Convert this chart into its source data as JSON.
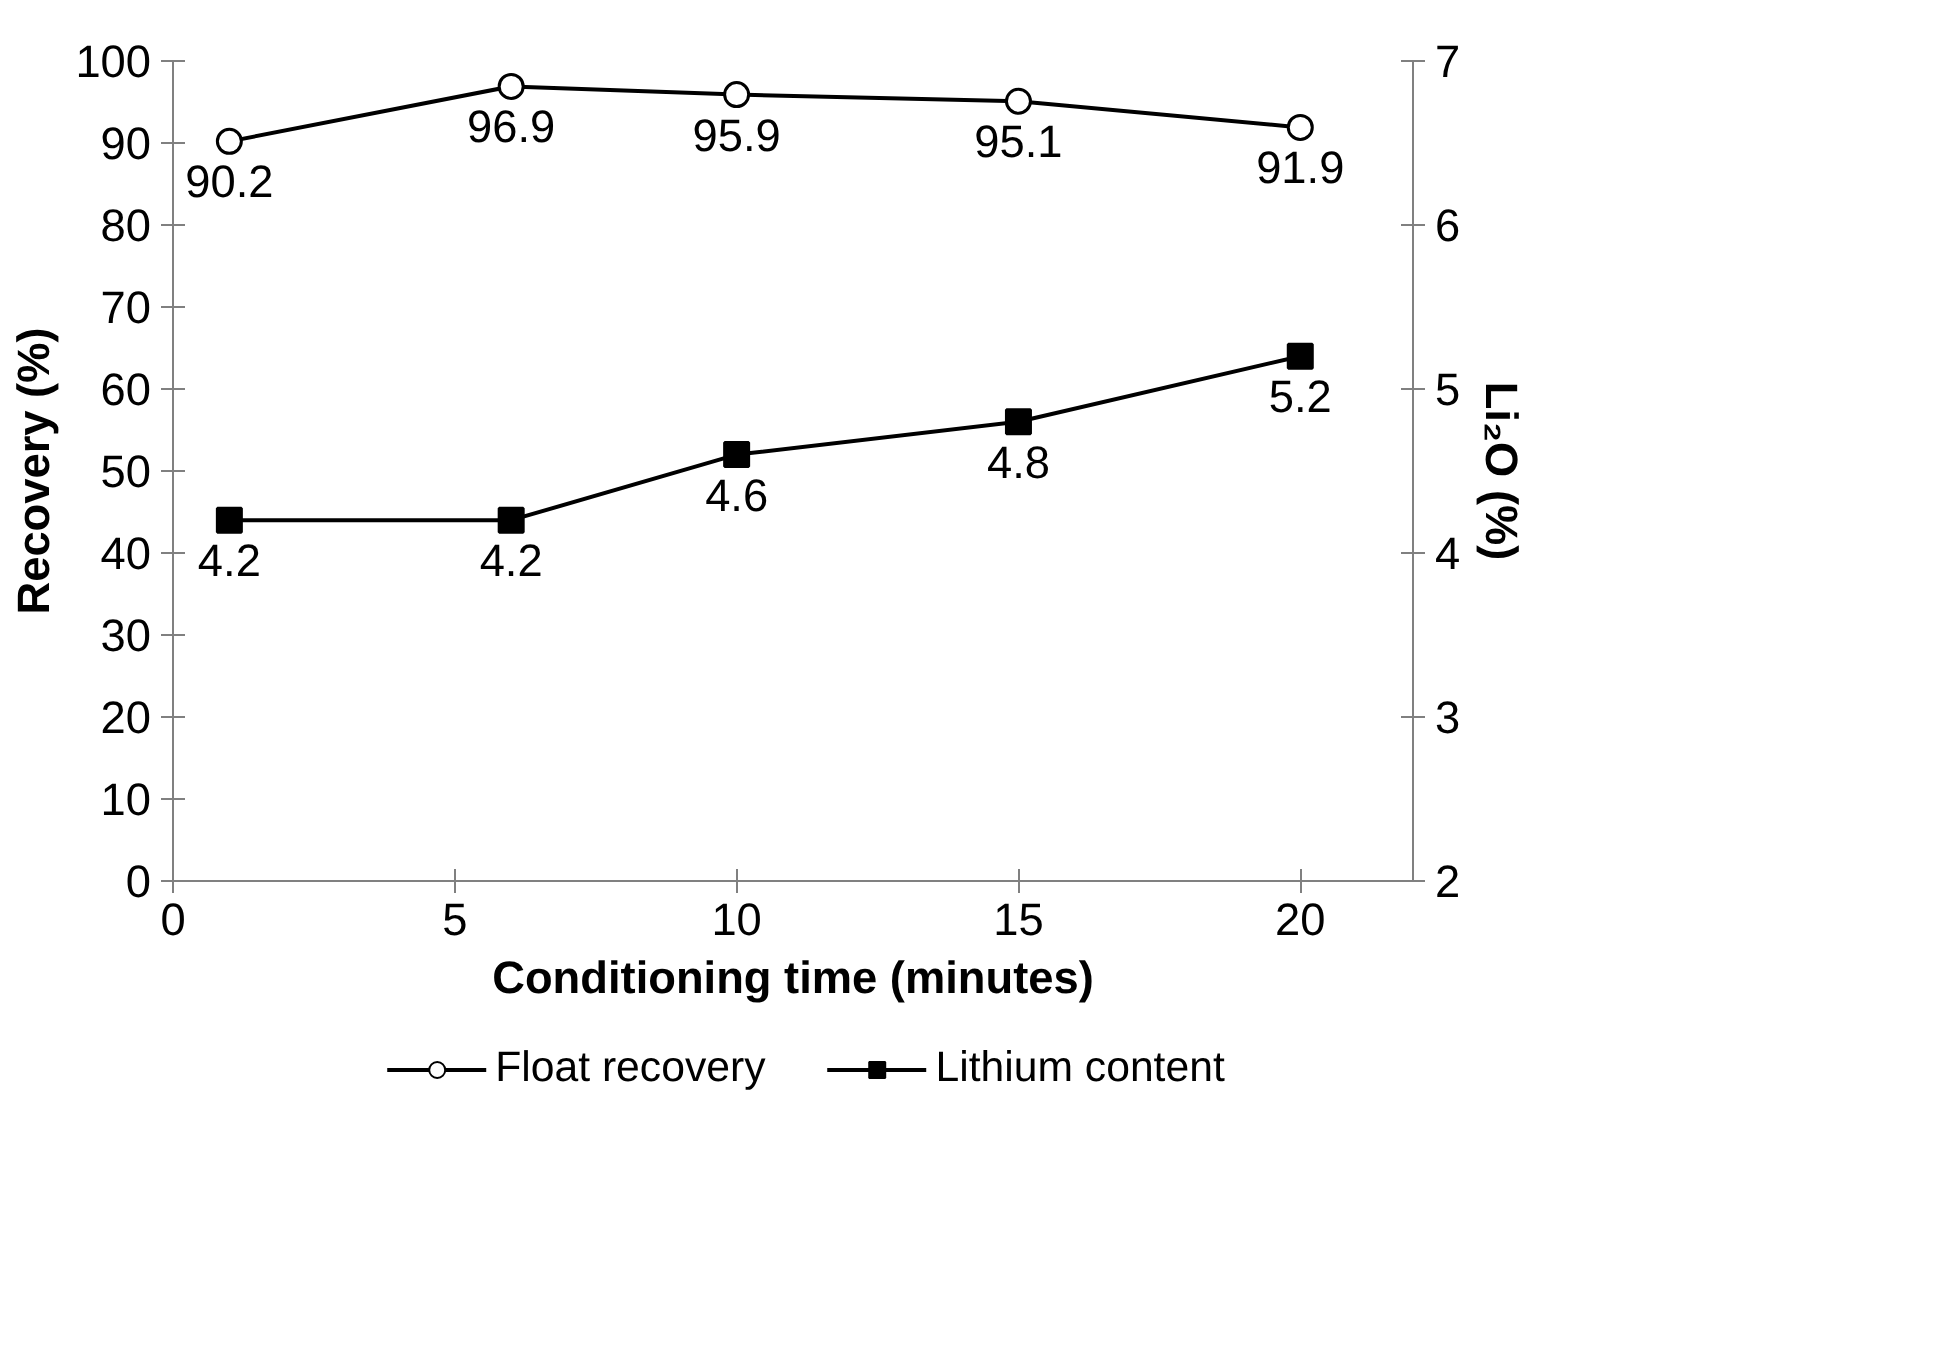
{
  "chart_data": {
    "type": "line",
    "xlabel": "Conditioning time (minutes)",
    "ylabel": "Recovery (%)",
    "y2label": "Li₂O (%)",
    "x": [
      1,
      6,
      10,
      15,
      20
    ],
    "series": [
      {
        "name": "Float recovery",
        "color": "#000000",
        "marker": "circle",
        "values": [
          90.2,
          96.9,
          95.9,
          95.1,
          91.9
        ]
      },
      {
        "name": "Lithium content",
        "color": "#000000",
        "marker": "square",
        "axis": "y2",
        "values": [
          4.2,
          4.2,
          4.6,
          4.8,
          5.2
        ]
      }
    ],
    "xlim": [
      0,
      22
    ],
    "xticks": [
      0,
      5,
      10,
      15,
      20
    ],
    "ylim": [
      0,
      100
    ],
    "yticks": [
      0,
      10,
      20,
      30,
      40,
      50,
      60,
      70,
      80,
      90,
      100
    ],
    "y2lim": [
      2,
      7
    ],
    "y2ticks": [
      2,
      3,
      4,
      5,
      6,
      7
    ],
    "data_labels": true,
    "grid": false,
    "legend": "bottom",
    "line_style": "solid"
  }
}
